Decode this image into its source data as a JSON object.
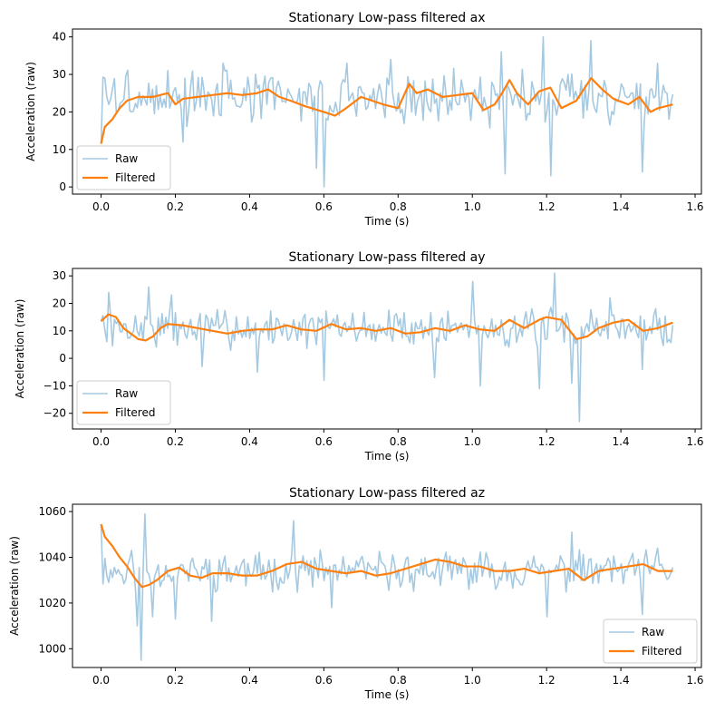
{
  "colors": {
    "raw": "#1f77b4",
    "filtered": "#ff7f0e",
    "axes": "#000000",
    "legend_frame": "#cccccc"
  },
  "chart_data": [
    {
      "type": "line",
      "title": "Stationary Low-pass filtered ax",
      "xlabel": "Time (s)",
      "ylabel": "Acceleration (raw)",
      "xlim": [
        -0.077,
        1.617
      ],
      "ylim": [
        -1.9,
        42.1
      ],
      "xticks": [
        0.0,
        0.2,
        0.4,
        0.6,
        0.8,
        1.0,
        1.2,
        1.4,
        1.6
      ],
      "xtick_labels": [
        "0.0",
        "0.2",
        "0.4",
        "0.6",
        "0.8",
        "1.0",
        "1.2",
        "1.4",
        "1.6"
      ],
      "yticks": [
        0,
        10,
        20,
        30,
        40
      ],
      "ytick_labels": [
        "0",
        "10",
        "20",
        "30",
        "40"
      ],
      "legend": {
        "location": "lower-left",
        "entries": [
          "Raw",
          "Filtered"
        ]
      },
      "series": [
        {
          "name": "Raw",
          "noise": {
            "center": 23.8,
            "amp": 6,
            "seed": 3
          },
          "spikes": [
            [
              0.0,
              11.5
            ],
            [
              0.01,
              29
            ],
            [
              0.08,
              20
            ],
            [
              0.18,
              31
            ],
            [
              0.22,
              12
            ],
            [
              0.33,
              33
            ],
            [
              0.58,
              5
            ],
            [
              0.6,
              0
            ],
            [
              0.66,
              33
            ],
            [
              0.78,
              34
            ],
            [
              1.08,
              36
            ],
            [
              1.09,
              3.5
            ],
            [
              1.19,
              40
            ],
            [
              1.21,
              3
            ],
            [
              1.32,
              39
            ],
            [
              1.46,
              4
            ],
            [
              1.5,
              33
            ]
          ]
        },
        {
          "name": "Filtered",
          "points": [
            [
              0.0,
              11.5
            ],
            [
              0.01,
              16
            ],
            [
              0.03,
              18
            ],
            [
              0.05,
              21
            ],
            [
              0.07,
              23
            ],
            [
              0.1,
              24
            ],
            [
              0.14,
              24
            ],
            [
              0.18,
              25
            ],
            [
              0.2,
              22
            ],
            [
              0.22,
              23.5
            ],
            [
              0.26,
              24
            ],
            [
              0.3,
              24.5
            ],
            [
              0.34,
              25
            ],
            [
              0.38,
              24.5
            ],
            [
              0.42,
              25
            ],
            [
              0.45,
              26
            ],
            [
              0.48,
              24
            ],
            [
              0.51,
              23
            ],
            [
              0.55,
              21.5
            ],
            [
              0.6,
              20
            ],
            [
              0.63,
              19
            ],
            [
              0.66,
              21
            ],
            [
              0.7,
              24
            ],
            [
              0.73,
              23
            ],
            [
              0.76,
              22
            ],
            [
              0.8,
              21
            ],
            [
              0.83,
              27.5
            ],
            [
              0.85,
              25
            ],
            [
              0.88,
              26
            ],
            [
              0.92,
              24
            ],
            [
              0.96,
              24.5
            ],
            [
              1.0,
              25
            ],
            [
              1.03,
              20.5
            ],
            [
              1.06,
              22
            ],
            [
              1.08,
              25
            ],
            [
              1.1,
              28.5
            ],
            [
              1.12,
              25
            ],
            [
              1.15,
              22
            ],
            [
              1.18,
              25.5
            ],
            [
              1.21,
              26.5
            ],
            [
              1.24,
              21
            ],
            [
              1.28,
              23
            ],
            [
              1.32,
              29
            ],
            [
              1.35,
              26
            ],
            [
              1.38,
              23.5
            ],
            [
              1.42,
              22
            ],
            [
              1.45,
              24
            ],
            [
              1.48,
              20
            ],
            [
              1.5,
              21
            ],
            [
              1.54,
              22
            ]
          ]
        }
      ]
    },
    {
      "type": "line",
      "title": "Stationary Low-pass filtered ay",
      "xlabel": "Time (s)",
      "ylabel": "Acceleration (raw)",
      "xlim": [
        -0.077,
        1.617
      ],
      "ylim": [
        -25.7,
        32.7
      ],
      "xticks": [
        0.0,
        0.2,
        0.4,
        0.6,
        0.8,
        1.0,
        1.2,
        1.4,
        1.6
      ],
      "xtick_labels": [
        "0.0",
        "0.2",
        "0.4",
        "0.6",
        "0.8",
        "1.0",
        "1.2",
        "1.4",
        "1.6"
      ],
      "yticks": [
        -20,
        -10,
        0,
        10,
        20,
        30
      ],
      "ytick_labels": [
        "−20",
        "−10",
        "0",
        "10",
        "20",
        "30"
      ],
      "legend": {
        "location": "lower-left",
        "entries": [
          "Raw",
          "Filtered"
        ]
      },
      "series": [
        {
          "name": "Raw",
          "noise": {
            "center": 11,
            "amp": 6,
            "seed": 7
          },
          "spikes": [
            [
              0.0,
              13.5
            ],
            [
              0.02,
              24
            ],
            [
              0.03,
              4.5
            ],
            [
              0.13,
              26
            ],
            [
              0.19,
              23
            ],
            [
              0.27,
              -3
            ],
            [
              0.42,
              -5
            ],
            [
              0.6,
              -8
            ],
            [
              0.9,
              -7
            ],
            [
              1.0,
              28
            ],
            [
              1.02,
              -10
            ],
            [
              1.18,
              -11
            ],
            [
              1.22,
              31
            ],
            [
              1.27,
              -9
            ],
            [
              1.29,
              -23
            ],
            [
              1.37,
              22
            ],
            [
              1.46,
              -4
            ]
          ]
        },
        {
          "name": "Filtered",
          "points": [
            [
              0.0,
              13.5
            ],
            [
              0.02,
              16
            ],
            [
              0.04,
              15
            ],
            [
              0.06,
              11
            ],
            [
              0.08,
              9
            ],
            [
              0.1,
              7
            ],
            [
              0.12,
              6.5
            ],
            [
              0.14,
              8
            ],
            [
              0.16,
              11
            ],
            [
              0.18,
              12.5
            ],
            [
              0.22,
              12
            ],
            [
              0.26,
              11
            ],
            [
              0.3,
              10
            ],
            [
              0.34,
              9
            ],
            [
              0.38,
              10
            ],
            [
              0.42,
              10.5
            ],
            [
              0.46,
              10.5
            ],
            [
              0.5,
              12
            ],
            [
              0.54,
              10.5
            ],
            [
              0.58,
              10
            ],
            [
              0.62,
              12.5
            ],
            [
              0.66,
              10.5
            ],
            [
              0.7,
              11
            ],
            [
              0.74,
              10
            ],
            [
              0.78,
              11
            ],
            [
              0.82,
              9
            ],
            [
              0.86,
              9.5
            ],
            [
              0.9,
              11
            ],
            [
              0.94,
              10
            ],
            [
              0.98,
              12
            ],
            [
              1.02,
              10.5
            ],
            [
              1.06,
              10
            ],
            [
              1.1,
              14
            ],
            [
              1.14,
              11
            ],
            [
              1.18,
              14
            ],
            [
              1.2,
              15
            ],
            [
              1.24,
              14
            ],
            [
              1.28,
              7
            ],
            [
              1.31,
              8
            ],
            [
              1.34,
              11
            ],
            [
              1.38,
              13
            ],
            [
              1.42,
              14
            ],
            [
              1.46,
              10
            ],
            [
              1.5,
              11
            ],
            [
              1.54,
              13
            ]
          ]
        }
      ]
    },
    {
      "type": "line",
      "title": "Stationary Low-pass filtered az",
      "xlabel": "Time (s)",
      "ylabel": "Acceleration (raw)",
      "xlim": [
        -0.077,
        1.617
      ],
      "ylim": [
        991.8,
        1063.2
      ],
      "xticks": [
        0.0,
        0.2,
        0.4,
        0.6,
        0.8,
        1.0,
        1.2,
        1.4,
        1.6
      ],
      "xtick_labels": [
        "0.0",
        "0.2",
        "0.4",
        "0.6",
        "0.8",
        "1.0",
        "1.2",
        "1.4",
        "1.6"
      ],
      "yticks": [
        1000,
        1020,
        1040,
        1060
      ],
      "ytick_labels": [
        "1000",
        "1020",
        "1040",
        "1060"
      ],
      "legend": {
        "location": "lower-right",
        "entries": [
          "Raw",
          "Filtered"
        ]
      },
      "series": [
        {
          "name": "Raw",
          "noise": {
            "center": 1034,
            "amp": 7,
            "seed": 11
          },
          "spikes": [
            [
              0.0,
              1054
            ],
            [
              0.02,
              1029
            ],
            [
              0.08,
              1043
            ],
            [
              0.1,
              1010
            ],
            [
              0.11,
              995
            ],
            [
              0.12,
              1059
            ],
            [
              0.14,
              1014
            ],
            [
              0.2,
              1013
            ],
            [
              0.3,
              1012
            ],
            [
              0.52,
              1056
            ],
            [
              0.62,
              1018
            ],
            [
              1.2,
              1014
            ],
            [
              1.27,
              1051
            ],
            [
              1.46,
              1015
            ],
            [
              1.5,
              1044
            ]
          ]
        },
        {
          "name": "Filtered",
          "points": [
            [
              0.0,
              1054.5
            ],
            [
              0.01,
              1049
            ],
            [
              0.03,
              1045
            ],
            [
              0.05,
              1040
            ],
            [
              0.07,
              1036
            ],
            [
              0.09,
              1031
            ],
            [
              0.11,
              1027
            ],
            [
              0.13,
              1028
            ],
            [
              0.15,
              1030
            ],
            [
              0.18,
              1034
            ],
            [
              0.21,
              1035.5
            ],
            [
              0.24,
              1032
            ],
            [
              0.27,
              1031
            ],
            [
              0.3,
              1033
            ],
            [
              0.34,
              1033
            ],
            [
              0.38,
              1032
            ],
            [
              0.42,
              1032
            ],
            [
              0.46,
              1034
            ],
            [
              0.5,
              1037
            ],
            [
              0.54,
              1038
            ],
            [
              0.58,
              1035
            ],
            [
              0.62,
              1034
            ],
            [
              0.66,
              1033
            ],
            [
              0.7,
              1034
            ],
            [
              0.74,
              1032
            ],
            [
              0.78,
              1033
            ],
            [
              0.82,
              1035
            ],
            [
              0.86,
              1037
            ],
            [
              0.9,
              1039
            ],
            [
              0.94,
              1038
            ],
            [
              0.98,
              1036
            ],
            [
              1.02,
              1036
            ],
            [
              1.06,
              1034
            ],
            [
              1.1,
              1034
            ],
            [
              1.14,
              1035
            ],
            [
              1.18,
              1033
            ],
            [
              1.22,
              1034
            ],
            [
              1.26,
              1035
            ],
            [
              1.3,
              1030
            ],
            [
              1.34,
              1034
            ],
            [
              1.38,
              1035
            ],
            [
              1.42,
              1036
            ],
            [
              1.46,
              1037
            ],
            [
              1.5,
              1034
            ],
            [
              1.54,
              1034
            ]
          ]
        }
      ]
    }
  ]
}
